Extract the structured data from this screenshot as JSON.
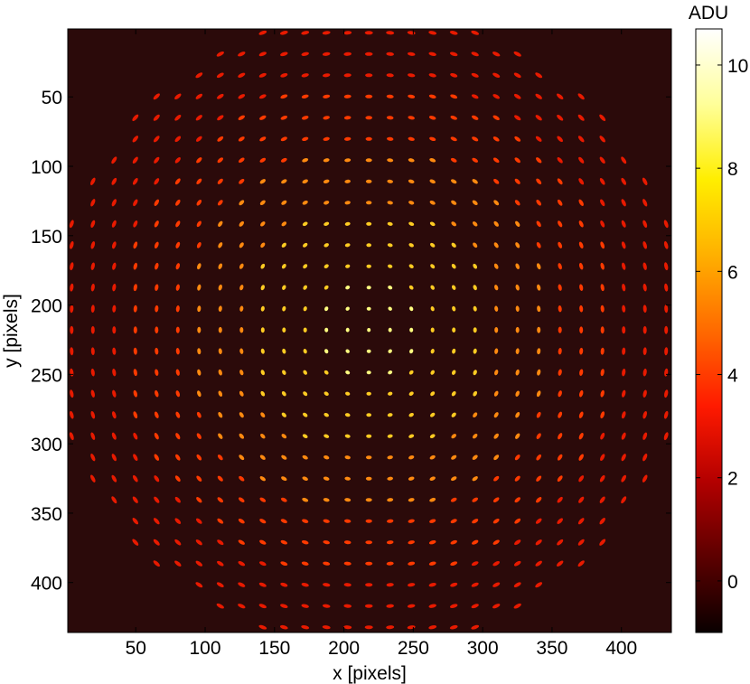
{
  "chart_data": {
    "type": "heatmap",
    "title": "",
    "xlabel": "x [pixels]",
    "ylabel": "y [pixels]",
    "xlim": [
      1,
      436
    ],
    "ylim": [
      1,
      436
    ],
    "x_ticks": [
      50,
      100,
      150,
      200,
      250,
      300,
      350,
      400
    ],
    "y_ticks": [
      50,
      100,
      150,
      200,
      250,
      300,
      350,
      400
    ],
    "y_axis_direction": "top-down",
    "image_description_values": {
      "spot_grid_spacing": 15.3,
      "spot_grid_count": 29,
      "grid_center": [
        218,
        218
      ],
      "aperture_radius": 228
    },
    "colorbar": {
      "label": "ADU",
      "colormap": "hot",
      "range": [
        -1,
        10.7
      ],
      "ticks": [
        0,
        2,
        4,
        6,
        8,
        10
      ],
      "colors": [
        "#0a0000",
        "#5c0000",
        "#b30000",
        "#ff1a00",
        "#ff6a00",
        "#ffb000",
        "#ffee00",
        "#ffff99",
        "#ffffff"
      ]
    },
    "background_color": "#2b0a0a",
    "grid": false
  }
}
